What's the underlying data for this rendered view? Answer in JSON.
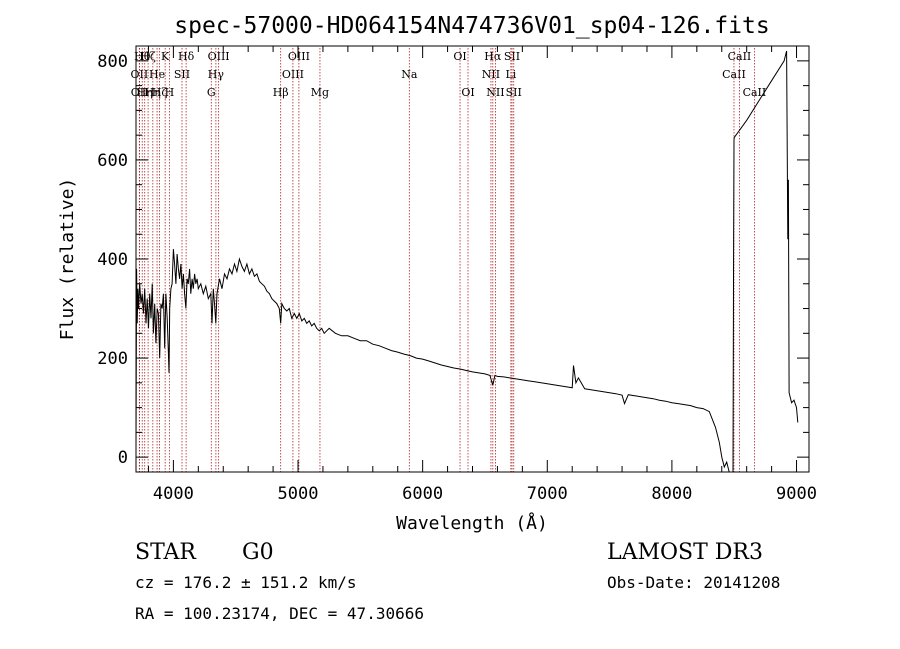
{
  "chart_data": {
    "type": "line",
    "title": "spec-57000-HD064154N474736V01_sp04-126.fits",
    "xlabel": "Wavelength (Å)",
    "ylabel": "Flux (relative)",
    "xlim": [
      3700,
      9100
    ],
    "ylim": [
      -30,
      830
    ],
    "x_ticks": [
      4000,
      5000,
      6000,
      7000,
      8000,
      9000
    ],
    "y_ticks": [
      0,
      200,
      400,
      600,
      800
    ],
    "grid": false,
    "series": [
      {
        "color": "#000000",
        "points": [
          [
            3700,
            20
          ],
          [
            3705,
            380
          ],
          [
            3710,
            270
          ],
          [
            3715,
            340
          ],
          [
            3720,
            300
          ],
          [
            3730,
            350
          ],
          [
            3740,
            310
          ],
          [
            3750,
            330
          ],
          [
            3760,
            290
          ],
          [
            3770,
            340
          ],
          [
            3780,
            270
          ],
          [
            3790,
            320
          ],
          [
            3800,
            260
          ],
          [
            3810,
            330
          ],
          [
            3820,
            280
          ],
          [
            3830,
            350
          ],
          [
            3840,
            250
          ],
          [
            3850,
            310
          ],
          [
            3860,
            230
          ],
          [
            3870,
            300
          ],
          [
            3880,
            290
          ],
          [
            3890,
            200
          ],
          [
            3900,
            310
          ],
          [
            3910,
            300
          ],
          [
            3920,
            330
          ],
          [
            3930,
            220
          ],
          [
            3940,
            330
          ],
          [
            3950,
            280
          ],
          [
            3960,
            210
          ],
          [
            3965,
            170
          ],
          [
            3970,
            300
          ],
          [
            3980,
            340
          ],
          [
            3990,
            350
          ],
          [
            4000,
            420
          ],
          [
            4010,
            390
          ],
          [
            4020,
            350
          ],
          [
            4030,
            410
          ],
          [
            4040,
            380
          ],
          [
            4050,
            360
          ],
          [
            4060,
            390
          ],
          [
            4070,
            340
          ],
          [
            4080,
            370
          ],
          [
            4090,
            330
          ],
          [
            4100,
            300
          ],
          [
            4110,
            360
          ],
          [
            4120,
            350
          ],
          [
            4130,
            380
          ],
          [
            4140,
            330
          ],
          [
            4150,
            360
          ],
          [
            4160,
            340
          ],
          [
            4170,
            370
          ],
          [
            4180,
            350
          ],
          [
            4190,
            360
          ],
          [
            4200,
            340
          ],
          [
            4220,
            350
          ],
          [
            4240,
            330
          ],
          [
            4260,
            345
          ],
          [
            4280,
            320
          ],
          [
            4300,
            330
          ],
          [
            4310,
            270
          ],
          [
            4320,
            340
          ],
          [
            4330,
            310
          ],
          [
            4340,
            270
          ],
          [
            4350,
            330
          ],
          [
            4370,
            360
          ],
          [
            4390,
            340
          ],
          [
            4410,
            370
          ],
          [
            4430,
            360
          ],
          [
            4450,
            380
          ],
          [
            4470,
            370
          ],
          [
            4490,
            390
          ],
          [
            4510,
            375
          ],
          [
            4530,
            400
          ],
          [
            4550,
            385
          ],
          [
            4570,
            375
          ],
          [
            4590,
            390
          ],
          [
            4610,
            370
          ],
          [
            4630,
            380
          ],
          [
            4650,
            365
          ],
          [
            4670,
            370
          ],
          [
            4690,
            355
          ],
          [
            4710,
            350
          ],
          [
            4730,
            345
          ],
          [
            4750,
            335
          ],
          [
            4770,
            330
          ],
          [
            4790,
            320
          ],
          [
            4810,
            315
          ],
          [
            4830,
            310
          ],
          [
            4850,
            300
          ],
          [
            4861,
            270
          ],
          [
            4870,
            310
          ],
          [
            4890,
            300
          ],
          [
            4910,
            295
          ],
          [
            4930,
            300
          ],
          [
            4950,
            280
          ],
          [
            4970,
            290
          ],
          [
            4990,
            280
          ],
          [
            5010,
            290
          ],
          [
            5030,
            275
          ],
          [
            5050,
            280
          ],
          [
            5070,
            270
          ],
          [
            5090,
            275
          ],
          [
            5110,
            265
          ],
          [
            5130,
            270
          ],
          [
            5150,
            260
          ],
          [
            5170,
            255
          ],
          [
            5190,
            260
          ],
          [
            5210,
            250
          ],
          [
            5250,
            260
          ],
          [
            5300,
            250
          ],
          [
            5350,
            245
          ],
          [
            5400,
            245
          ],
          [
            5450,
            240
          ],
          [
            5500,
            235
          ],
          [
            5550,
            235
          ],
          [
            5600,
            228
          ],
          [
            5650,
            225
          ],
          [
            5700,
            220
          ],
          [
            5750,
            215
          ],
          [
            5800,
            212
          ],
          [
            5850,
            208
          ],
          [
            5900,
            205
          ],
          [
            5950,
            200
          ],
          [
            6000,
            198
          ],
          [
            6050,
            194
          ],
          [
            6100,
            190
          ],
          [
            6150,
            186
          ],
          [
            6200,
            183
          ],
          [
            6250,
            180
          ],
          [
            6300,
            178
          ],
          [
            6350,
            175
          ],
          [
            6400,
            172
          ],
          [
            6450,
            170
          ],
          [
            6500,
            168
          ],
          [
            6540,
            165
          ],
          [
            6563,
            145
          ],
          [
            6580,
            165
          ],
          [
            6600,
            163
          ],
          [
            6650,
            162
          ],
          [
            6700,
            160
          ],
          [
            6750,
            158
          ],
          [
            6800,
            156
          ],
          [
            6850,
            154
          ],
          [
            6900,
            152
          ],
          [
            6950,
            150
          ],
          [
            7000,
            148
          ],
          [
            7050,
            146
          ],
          [
            7100,
            144
          ],
          [
            7150,
            142
          ],
          [
            7200,
            140
          ],
          [
            7210,
            185
          ],
          [
            7230,
            150
          ],
          [
            7250,
            160
          ],
          [
            7300,
            138
          ],
          [
            7350,
            136
          ],
          [
            7400,
            134
          ],
          [
            7450,
            132
          ],
          [
            7500,
            130
          ],
          [
            7550,
            128
          ],
          [
            7600,
            125
          ],
          [
            7620,
            108
          ],
          [
            7650,
            126
          ],
          [
            7700,
            124
          ],
          [
            7750,
            122
          ],
          [
            7800,
            120
          ],
          [
            7850,
            118
          ],
          [
            7900,
            115
          ],
          [
            7950,
            113
          ],
          [
            8000,
            110
          ],
          [
            8050,
            108
          ],
          [
            8100,
            106
          ],
          [
            8150,
            104
          ],
          [
            8200,
            100
          ],
          [
            8250,
            98
          ],
          [
            8300,
            92
          ],
          [
            8350,
            60
          ],
          [
            8380,
            30
          ],
          [
            8400,
            0
          ],
          [
            8420,
            -20
          ],
          [
            8440,
            -10
          ],
          [
            8460,
            -30
          ],
          [
            8490,
            -30
          ],
          [
            8495,
            430
          ],
          [
            8498,
            640
          ],
          [
            8500,
            645
          ],
          [
            8600,
            680
          ],
          [
            8700,
            720
          ],
          [
            8800,
            760
          ],
          [
            8900,
            800
          ],
          [
            8920,
            820
          ],
          [
            8930,
            440
          ],
          [
            8935,
            560
          ],
          [
            8940,
            130
          ],
          [
            8960,
            110
          ],
          [
            8980,
            115
          ],
          [
            9000,
            100
          ],
          [
            9010,
            70
          ]
        ]
      }
    ],
    "lines": [
      {
        "x": 3727,
        "label": "OII",
        "row": 1
      },
      {
        "x": 3729,
        "label": "OII",
        "row": 2
      },
      {
        "x": 3750,
        "label": "Hθ",
        "row": 0
      },
      {
        "x": 3770,
        "label": "Hη",
        "row": 2
      },
      {
        "x": 3797,
        "label": "Hζ",
        "row": 0
      },
      {
        "x": 3835,
        "label": "Hη",
        "row": 2
      },
      {
        "x": 3869,
        "label": "He",
        "row": 1
      },
      {
        "x": 3889,
        "label": "Hζ",
        "row": 2
      },
      {
        "x": 3934,
        "label": "K",
        "row": 0
      },
      {
        "x": 3968,
        "label": "H",
        "row": 2
      },
      {
        "x": 4069,
        "label": "SII",
        "row": 1
      },
      {
        "x": 4102,
        "label": "Hδ",
        "row": 0
      },
      {
        "x": 4304,
        "label": "G",
        "row": 2
      },
      {
        "x": 4341,
        "label": "Hγ",
        "row": 1
      },
      {
        "x": 4363,
        "label": "OIII",
        "row": 0
      },
      {
        "x": 4861,
        "label": "Hβ",
        "row": 2
      },
      {
        "x": 4959,
        "label": "OIII",
        "row": 1
      },
      {
        "x": 5007,
        "label": "OIII",
        "row": 0
      },
      {
        "x": 5176,
        "label": "Mg",
        "row": 2
      },
      {
        "x": 5893,
        "label": "Na",
        "row": 1
      },
      {
        "x": 6300,
        "label": "OI",
        "row": 0
      },
      {
        "x": 6364,
        "label": "OI",
        "row": 2
      },
      {
        "x": 6548,
        "label": "NII",
        "row": 1
      },
      {
        "x": 6563,
        "label": "Hα",
        "row": 0
      },
      {
        "x": 6584,
        "label": "NII",
        "row": 2
      },
      {
        "x": 6708,
        "label": "Li",
        "row": 1
      },
      {
        "x": 6717,
        "label": "SII",
        "row": 0
      },
      {
        "x": 6731,
        "label": "SII",
        "row": 2
      },
      {
        "x": 8498,
        "label": "CaII",
        "row": 1
      },
      {
        "x": 8542,
        "label": "CaII",
        "row": 0
      },
      {
        "x": 8662,
        "label": "CaII",
        "row": 2
      }
    ]
  },
  "info": {
    "object_class": "STAR",
    "subclass": "G0",
    "survey": "LAMOST DR3",
    "redshift": "cz = 176.2 ± 151.2 km/s",
    "obs_date": "Obs-Date: 20141208",
    "coords": "RA = 100.23174, DEC =  47.30666"
  }
}
